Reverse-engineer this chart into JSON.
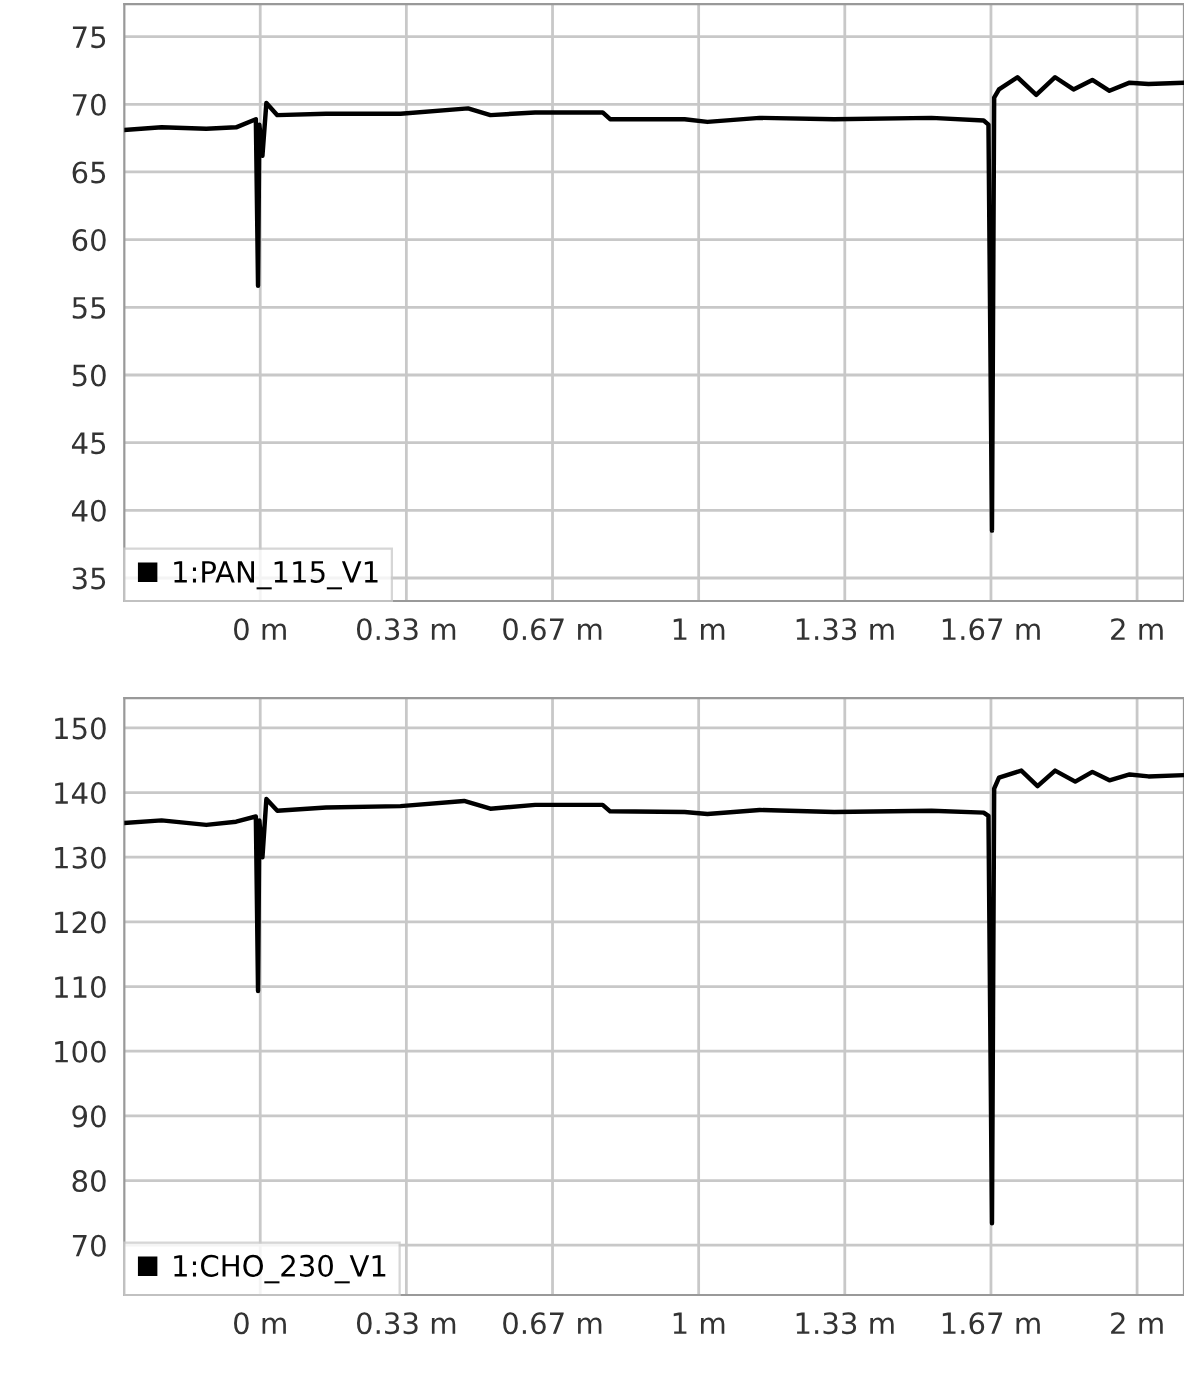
{
  "chart_data": [
    {
      "type": "line",
      "legend": "bottom left",
      "grid": true,
      "marker": "none",
      "line_style": "solid",
      "xlim": [
        -0.31,
        2.107
      ],
      "ylim": [
        33.3,
        77.4
      ],
      "xticks": [
        {
          "value": 0,
          "label": "0 m"
        },
        {
          "value": 0.3333,
          "label": "0.33 m"
        },
        {
          "value": 0.6667,
          "label": "0.67 m"
        },
        {
          "value": 1,
          "label": "1 m"
        },
        {
          "value": 1.3333,
          "label": "1.33 m"
        },
        {
          "value": 1.6667,
          "label": "1.67 m"
        },
        {
          "value": 2,
          "label": "2 m"
        }
      ],
      "yticks": [
        35,
        40,
        45,
        50,
        55,
        60,
        65,
        70,
        75
      ],
      "series": [
        {
          "name": "1:PAN_115_V1",
          "color": "#000000",
          "x": [
            -0.31,
            -0.225,
            -0.123,
            -0.055,
            -0.01,
            -0.005,
            -0.002,
            0.005,
            0.014,
            0.039,
            0.15,
            0.32,
            0.474,
            0.525,
            0.627,
            0.781,
            0.798,
            0.968,
            1.02,
            1.139,
            1.309,
            1.531,
            1.65,
            1.661,
            1.669,
            1.674,
            1.685,
            1.727,
            1.77,
            1.813,
            1.855,
            1.898,
            1.937,
            1.983,
            2.026,
            2.107
          ],
          "values": [
            68.1,
            68.3,
            68.2,
            68.3,
            68.9,
            56.6,
            68.5,
            66.2,
            70.1,
            69.2,
            69.3,
            69.3,
            69.7,
            69.2,
            69.4,
            69.4,
            68.9,
            68.9,
            68.7,
            69.0,
            68.9,
            69.0,
            68.8,
            68.5,
            38.5,
            70.5,
            71.1,
            72.0,
            70.7,
            72.0,
            71.1,
            71.8,
            71.0,
            71.6,
            71.5,
            71.6
          ]
        }
      ]
    },
    {
      "type": "line",
      "legend": "bottom left",
      "grid": true,
      "marker": "none",
      "line_style": "solid",
      "xlim": [
        -0.31,
        2.107
      ],
      "ylim": [
        62.3,
        154.6
      ],
      "xticks": [
        {
          "value": 0,
          "label": "0 m"
        },
        {
          "value": 0.3333,
          "label": "0.33 m"
        },
        {
          "value": 0.6667,
          "label": "0.67 m"
        },
        {
          "value": 1,
          "label": "1 m"
        },
        {
          "value": 1.3333,
          "label": "1.33 m"
        },
        {
          "value": 1.6667,
          "label": "1.67 m"
        },
        {
          "value": 2,
          "label": "2 m"
        }
      ],
      "yticks": [
        70,
        80,
        90,
        100,
        110,
        120,
        130,
        140,
        150
      ],
      "series": [
        {
          "name": "1:CHO_230_V1",
          "color": "#000000",
          "x": [
            -0.31,
            -0.225,
            -0.123,
            -0.055,
            -0.01,
            -0.005,
            -0.002,
            0.005,
            0.014,
            0.039,
            0.15,
            0.32,
            0.465,
            0.525,
            0.627,
            0.781,
            0.798,
            0.968,
            1.02,
            1.139,
            1.309,
            1.531,
            1.65,
            1.661,
            1.669,
            1.674,
            1.685,
            1.736,
            1.773,
            1.813,
            1.859,
            1.898,
            1.937,
            1.983,
            2.026,
            2.107
          ],
          "values": [
            135.3,
            135.7,
            135.0,
            135.5,
            136.3,
            109.3,
            135.7,
            130.0,
            139.0,
            137.2,
            137.7,
            137.9,
            138.7,
            137.5,
            138.1,
            138.1,
            137.1,
            137.0,
            136.7,
            137.3,
            137.0,
            137.2,
            136.9,
            136.4,
            73.4,
            140.6,
            142.3,
            143.4,
            141.0,
            143.4,
            141.7,
            143.2,
            141.9,
            142.8,
            142.5,
            142.7
          ]
        }
      ]
    }
  ]
}
